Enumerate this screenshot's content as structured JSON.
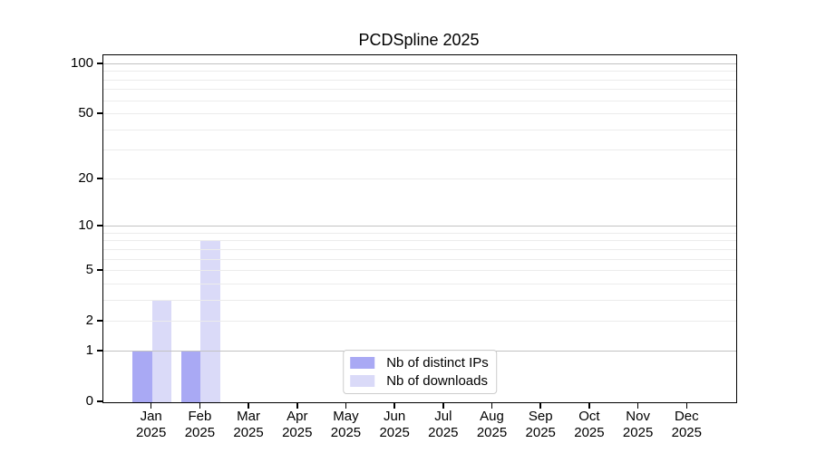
{
  "figure": {
    "title": "PCDSpline 2025"
  },
  "chart_data": {
    "type": "bar",
    "title": "PCDSpline 2025",
    "xlabel": "",
    "ylabel": "",
    "categories": [
      "Jan 2025",
      "Feb 2025",
      "Mar 2025",
      "Apr 2025",
      "May 2025",
      "Jun 2025",
      "Jul 2025",
      "Aug 2025",
      "Sep 2025",
      "Oct 2025",
      "Nov 2025",
      "Dec 2025"
    ],
    "series": [
      {
        "name": "Nb of distinct IPs",
        "color": "#a9a9f4",
        "values": [
          1,
          1,
          0,
          0,
          0,
          0,
          0,
          0,
          0,
          0,
          0,
          0
        ]
      },
      {
        "name": "Nb of downloads",
        "color": "#dadaf8",
        "values": [
          3,
          8,
          0,
          0,
          0,
          0,
          0,
          0,
          0,
          0,
          0,
          0
        ]
      }
    ],
    "yscale": "log10(1+x)",
    "ylim": [
      0,
      113.3
    ],
    "ytick_values": [
      0,
      1,
      2,
      5,
      10,
      20,
      50,
      100
    ],
    "ytick_labels": [
      "0",
      "1",
      "2",
      "5",
      "10",
      "20",
      "50",
      "100"
    ],
    "grid_minor_values": [
      1,
      2,
      3,
      4,
      5,
      6,
      7,
      8,
      9,
      10,
      20,
      30,
      40,
      50,
      60,
      70,
      80,
      90,
      100
    ],
    "grid_major_values": [
      1,
      10,
      100
    ],
    "grid": "horizontal",
    "legend_position": "lower center",
    "legend_labels": [
      "Nb of distinct IPs",
      "Nb of downloads"
    ]
  }
}
